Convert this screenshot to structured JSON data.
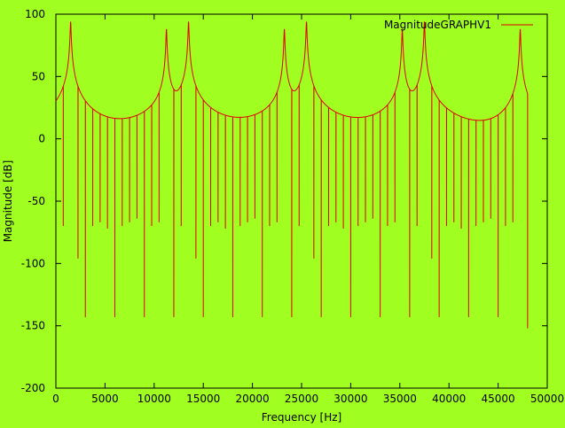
{
  "chart_data": {
    "type": "line",
    "title": "",
    "xlabel": "Frequency [Hz]",
    "ylabel": "Magnitude [dB]",
    "xlim": [
      0,
      50000
    ],
    "ylim": [
      -200,
      100
    ],
    "xticks": [
      0,
      5000,
      10000,
      15000,
      20000,
      25000,
      30000,
      35000,
      40000,
      45000,
      50000
    ],
    "yticks": [
      -200,
      -150,
      -100,
      -50,
      0,
      50,
      100
    ],
    "grid": false,
    "legend_position": "top-right",
    "series": [
      {
        "name": "MagnitudeGRAPHV1",
        "color": "#e00000",
        "baseline_db": -163,
        "x_range": [
          0,
          48000
        ],
        "peaks": [
          {
            "x": 750,
            "y": -70
          },
          {
            "x": 1500,
            "y": 94
          },
          {
            "x": 2250,
            "y": -96
          },
          {
            "x": 3000,
            "y": -143
          },
          {
            "x": 3750,
            "y": -70
          },
          {
            "x": 4500,
            "y": -67
          },
          {
            "x": 5250,
            "y": -72
          },
          {
            "x": 6000,
            "y": -143
          },
          {
            "x": 6750,
            "y": -70
          },
          {
            "x": 7500,
            "y": -67
          },
          {
            "x": 8250,
            "y": -64
          },
          {
            "x": 9000,
            "y": -143
          },
          {
            "x": 9750,
            "y": -70
          },
          {
            "x": 10500,
            "y": -67
          },
          {
            "x": 11250,
            "y": 88
          },
          {
            "x": 12000,
            "y": -143
          },
          {
            "x": 12750,
            "y": -70
          },
          {
            "x": 13500,
            "y": 94
          },
          {
            "x": 14250,
            "y": -96
          },
          {
            "x": 15000,
            "y": -143
          },
          {
            "x": 15750,
            "y": -70
          },
          {
            "x": 16500,
            "y": -67
          },
          {
            "x": 17250,
            "y": -72
          },
          {
            "x": 18000,
            "y": -143
          },
          {
            "x": 18750,
            "y": -70
          },
          {
            "x": 19500,
            "y": -67
          },
          {
            "x": 20250,
            "y": -64
          },
          {
            "x": 21000,
            "y": -143
          },
          {
            "x": 21750,
            "y": -70
          },
          {
            "x": 22500,
            "y": -67
          },
          {
            "x": 23250,
            "y": 88
          },
          {
            "x": 24000,
            "y": -143
          },
          {
            "x": 24750,
            "y": -70
          },
          {
            "x": 25500,
            "y": 94
          },
          {
            "x": 26250,
            "y": -96
          },
          {
            "x": 27000,
            "y": -143
          },
          {
            "x": 27750,
            "y": -70
          },
          {
            "x": 28500,
            "y": -67
          },
          {
            "x": 29250,
            "y": -72
          },
          {
            "x": 30000,
            "y": -143
          },
          {
            "x": 30750,
            "y": -70
          },
          {
            "x": 31500,
            "y": -67
          },
          {
            "x": 32250,
            "y": -64
          },
          {
            "x": 33000,
            "y": -143
          },
          {
            "x": 33750,
            "y": -70
          },
          {
            "x": 34500,
            "y": -67
          },
          {
            "x": 35250,
            "y": 88
          },
          {
            "x": 36000,
            "y": -143
          },
          {
            "x": 36750,
            "y": -70
          },
          {
            "x": 37500,
            "y": 94
          },
          {
            "x": 38250,
            "y": -96
          },
          {
            "x": 39000,
            "y": -143
          },
          {
            "x": 39750,
            "y": -70
          },
          {
            "x": 40500,
            "y": -67
          },
          {
            "x": 41250,
            "y": -72
          },
          {
            "x": 42000,
            "y": -143
          },
          {
            "x": 42750,
            "y": -70
          },
          {
            "x": 43500,
            "y": -67
          },
          {
            "x": 44250,
            "y": -64
          },
          {
            "x": 45000,
            "y": -143
          },
          {
            "x": 45750,
            "y": -70
          },
          {
            "x": 46500,
            "y": -67
          },
          {
            "x": 47250,
            "y": 88
          }
        ],
        "end_point": {
          "x": 48000,
          "y": -152
        }
      }
    ]
  },
  "colors": {
    "background": "#a0ff20",
    "axes": "#000000",
    "line": "#e00000"
  }
}
